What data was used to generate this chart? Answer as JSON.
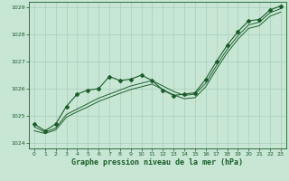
{
  "title": "Graphe pression niveau de la mer (hPa)",
  "background_color": "#c8e6d4",
  "grid_color": "#a0c8b8",
  "line_color": "#1a5c2a",
  "xlim": [
    -0.5,
    23.5
  ],
  "ylim": [
    1023.8,
    1029.2
  ],
  "yticks": [
    1024,
    1025,
    1026,
    1027,
    1028,
    1029
  ],
  "xticks": [
    0,
    1,
    2,
    3,
    4,
    5,
    6,
    7,
    8,
    9,
    10,
    11,
    12,
    13,
    14,
    15,
    16,
    17,
    18,
    19,
    20,
    21,
    22,
    23
  ],
  "measured_x": [
    0,
    1,
    2,
    3,
    4,
    5,
    6,
    7,
    8,
    9,
    10,
    11,
    12,
    13,
    14,
    15,
    16,
    17,
    18,
    19,
    20,
    21,
    22,
    23
  ],
  "measured_y": [
    1024.7,
    1024.45,
    1024.7,
    1025.35,
    1025.8,
    1025.95,
    1026.0,
    1026.45,
    1026.3,
    1026.35,
    1026.5,
    1026.3,
    1025.95,
    1025.75,
    1025.8,
    1025.85,
    1026.35,
    1027.0,
    1027.6,
    1028.1,
    1028.5,
    1028.55,
    1028.9,
    1029.05
  ],
  "trend1_x": [
    0,
    1,
    2,
    3,
    4,
    5,
    6,
    7,
    8,
    9,
    10,
    11,
    12,
    13,
    14,
    15,
    16,
    17,
    18,
    19,
    20,
    21,
    22,
    23
  ],
  "trend1_y": [
    1024.6,
    1024.4,
    1024.55,
    1025.05,
    1025.25,
    1025.45,
    1025.65,
    1025.8,
    1025.95,
    1026.1,
    1026.2,
    1026.3,
    1026.1,
    1025.9,
    1025.75,
    1025.8,
    1026.2,
    1026.85,
    1027.45,
    1027.95,
    1028.35,
    1028.45,
    1028.8,
    1028.95
  ],
  "trend2_x": [
    0,
    1,
    2,
    3,
    4,
    5,
    6,
    7,
    8,
    9,
    10,
    11,
    12,
    13,
    14,
    15,
    16,
    17,
    18,
    19,
    20,
    21,
    22,
    23
  ],
  "trend2_y": [
    1024.45,
    1024.35,
    1024.48,
    1024.95,
    1025.15,
    1025.33,
    1025.53,
    1025.68,
    1025.83,
    1025.97,
    1026.07,
    1026.17,
    1025.97,
    1025.77,
    1025.63,
    1025.67,
    1026.07,
    1026.72,
    1027.32,
    1027.82,
    1028.22,
    1028.32,
    1028.67,
    1028.82
  ],
  "marker_style": "D",
  "marker_size": 2.0,
  "linewidth": 0.8,
  "tick_fontsize": 4.5,
  "label_fontsize": 6.0
}
